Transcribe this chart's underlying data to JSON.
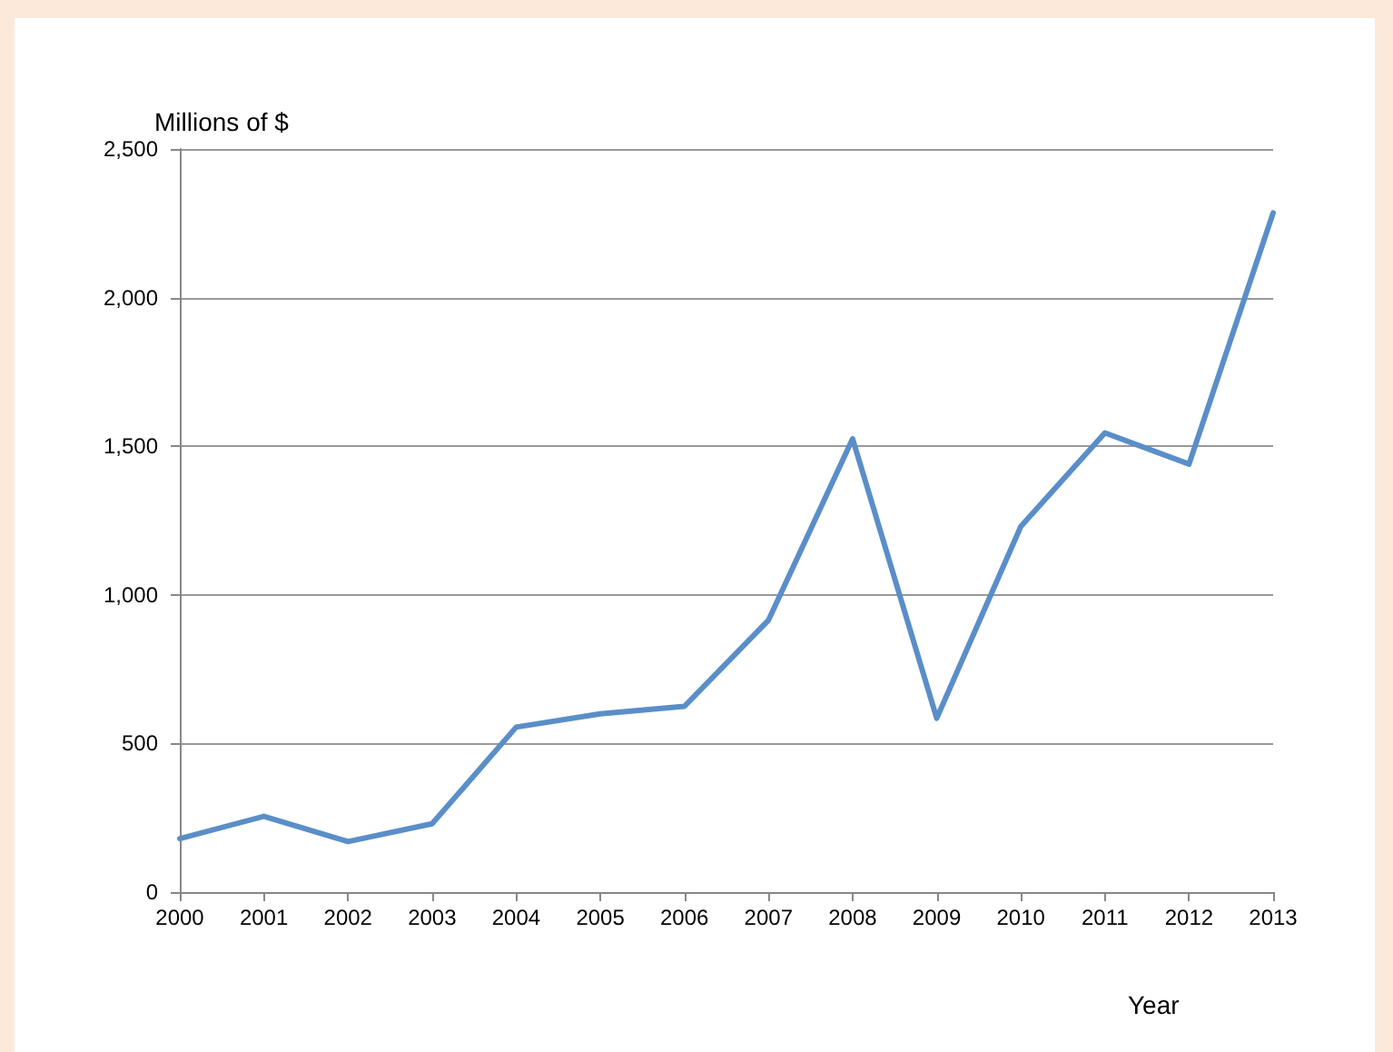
{
  "chart_data": {
    "type": "line",
    "ylabel": "Millions of $",
    "xlabel": "Year",
    "categories": [
      "2000",
      "2001",
      "2002",
      "2003",
      "2004",
      "2005",
      "2006",
      "2007",
      "2008",
      "2009",
      "2010",
      "2011",
      "2012",
      "2013"
    ],
    "series": [
      {
        "color": "#5a8ec8",
        "values": [
          180,
          255,
          170,
          230,
          555,
          600,
          625,
          915,
          1525,
          585,
          1230,
          1545,
          1440,
          2285
        ]
      }
    ],
    "ylim": [
      0,
      2500
    ],
    "yticks": [
      0,
      500,
      {
        "value": 1000,
        "label": "1,000"
      },
      {
        "value": 1500,
        "label": "1,500"
      },
      {
        "value": 2000,
        "label": "2,000"
      },
      {
        "value": 2500,
        "label": "2,500"
      }
    ],
    "grid": "y",
    "marker": "none",
    "line_style": "solid"
  }
}
